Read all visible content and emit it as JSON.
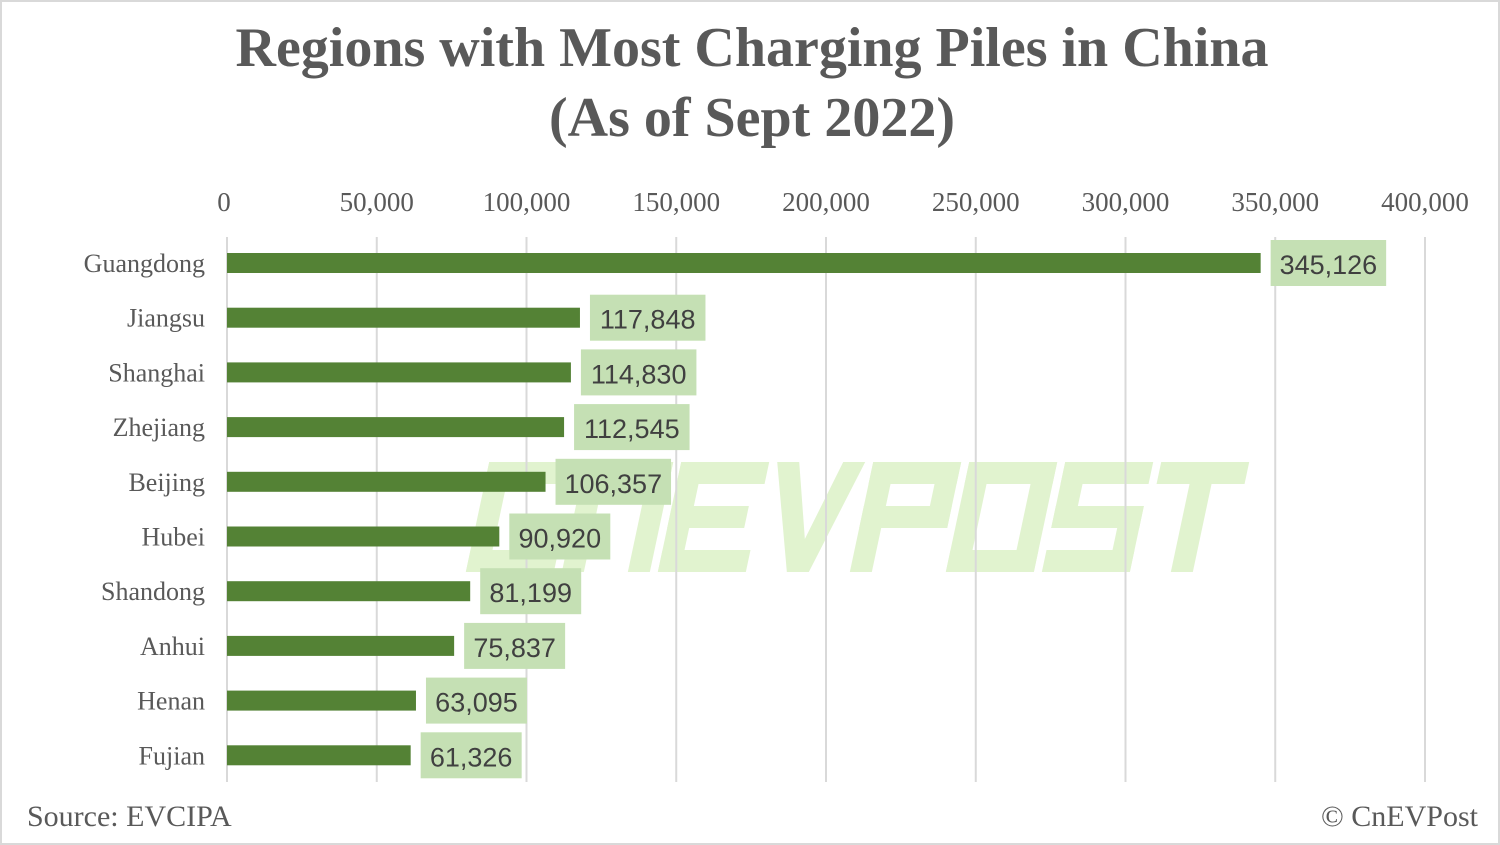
{
  "chart_data": {
    "type": "bar",
    "orientation": "horizontal",
    "title": "Regions with Most Charging Piles in China",
    "subtitle": "(As of Sept 2022)",
    "categories": [
      "Guangdong",
      "Jiangsu",
      "Shanghai",
      "Zhejiang",
      "Beijing",
      "Hubei",
      "Shandong",
      "Anhui",
      "Henan",
      "Fujian"
    ],
    "values": [
      345126,
      117848,
      114830,
      112545,
      106357,
      90920,
      81199,
      75837,
      63095,
      61326
    ],
    "data_labels": [
      "345,126",
      "117,848",
      "114,830",
      "112,545",
      "106,357",
      "90,920",
      "81,199",
      "75,837",
      "63,095",
      "61,326"
    ],
    "xlim": [
      0,
      400000
    ],
    "x_ticks": [
      0,
      50000,
      100000,
      150000,
      200000,
      250000,
      300000,
      350000,
      400000
    ],
    "x_tick_labels": [
      "0",
      "50,000",
      "100,000",
      "150,000",
      "200,000",
      "250,000",
      "300,000",
      "350,000",
      "400,000"
    ],
    "x_axis_position": "top",
    "grid": true,
    "legend": "none",
    "colors": {
      "bar": "#548235",
      "label_box": "#c5e0b4",
      "label_text": "#404040",
      "grid": "#d9d9d9",
      "text": "#595959"
    }
  },
  "source": "Source: EVCIPA",
  "credit": "© CnEVPost",
  "watermark": "CNEVPOST"
}
